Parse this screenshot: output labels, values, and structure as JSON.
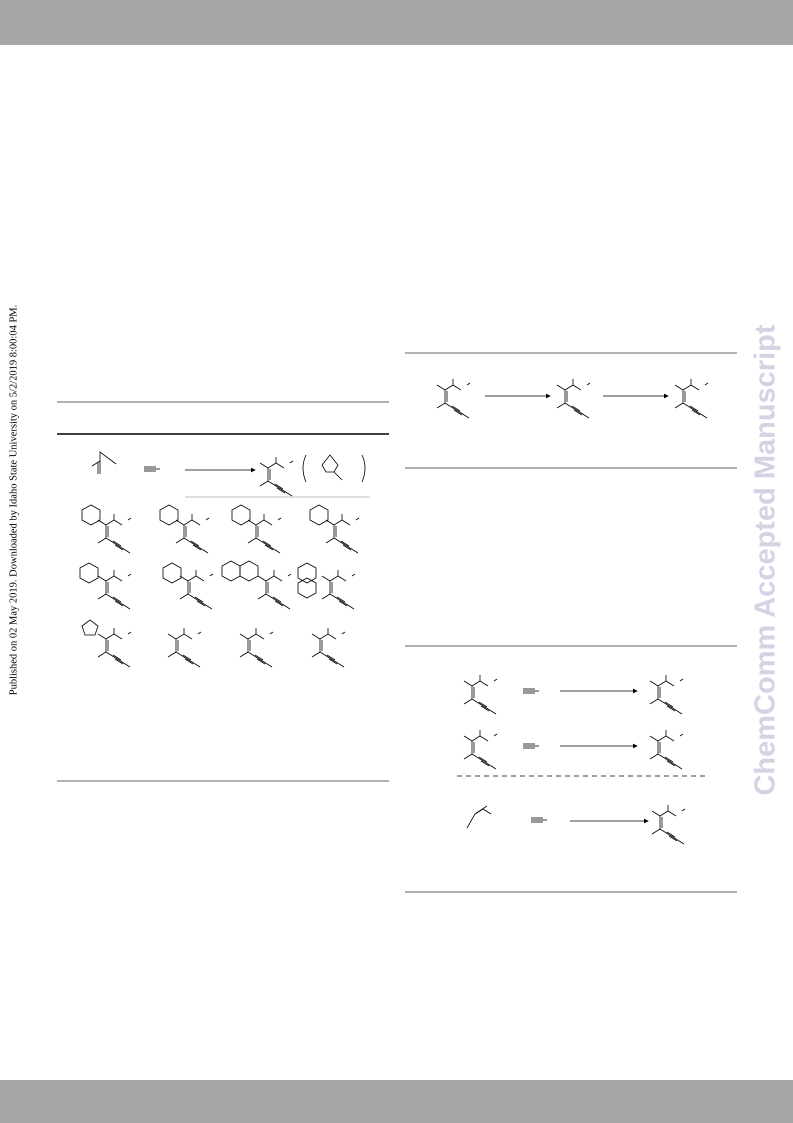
{
  "sidebar": {
    "published": "Published on 02 May 2019. Downloaded by Idaho State University on 5/2/2019 8:00:04 PM."
  },
  "watermark": "ChemComm Accepted Manuscript"
}
